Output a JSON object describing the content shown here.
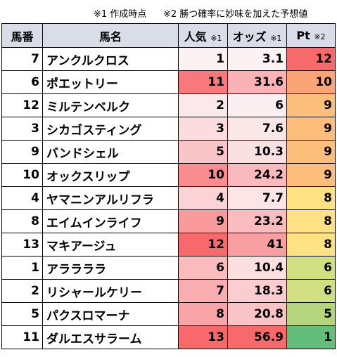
{
  "notes": {
    "note1": "※1 作成時点",
    "note2": "※2 勝つ確率に妙味を加えた予想値"
  },
  "headers": {
    "number": "馬番",
    "name": "馬名",
    "popularity": "人気",
    "popularity_mark": "※1",
    "odds": "オッズ",
    "odds_mark": "※1",
    "pt": "Pt",
    "pt_mark": "※2"
  },
  "rows": [
    {
      "number": "7",
      "name": "アンクルクロス",
      "popularity": "1",
      "odds": "3.1",
      "pt": "12",
      "pop_color": "#fcf1f3",
      "odds_color": "#fcf1f3",
      "pt_color": "#f8696b"
    },
    {
      "number": "6",
      "name": "ポエットリー",
      "popularity": "11",
      "odds": "31.6",
      "pt": "10",
      "pop_color": "#f8797c",
      "odds_color": "#fab2b5",
      "pt_color": "#fba476"
    },
    {
      "number": "12",
      "name": "ミルテンベルク",
      "popularity": "2",
      "odds": "6",
      "pt": "9",
      "pop_color": "#fbe8ea",
      "odds_color": "#fbeff1",
      "pt_color": "#fdbe7b"
    },
    {
      "number": "3",
      "name": "シカゴスティング",
      "popularity": "3",
      "odds": "7.6",
      "pt": "9",
      "pop_color": "#fbdcdf",
      "odds_color": "#fbe6e8",
      "pt_color": "#fdbe7b"
    },
    {
      "number": "9",
      "name": "バンドシェル",
      "popularity": "5",
      "odds": "10.3",
      "pt": "9",
      "pop_color": "#fac5c8",
      "odds_color": "#fbe0e2",
      "pt_color": "#fdbe7b"
    },
    {
      "number": "10",
      "name": "オックスリップ",
      "popularity": "10",
      "odds": "24.2",
      "pt": "9",
      "pop_color": "#f98c8f",
      "odds_color": "#fab9bc",
      "pt_color": "#fdbe7b"
    },
    {
      "number": "4",
      "name": "ヤマニンアルリフラ",
      "popularity": "4",
      "odds": "7.7",
      "pt": "8",
      "pop_color": "#fbd2d5",
      "odds_color": "#fbe5e7",
      "pt_color": "#fee183"
    },
    {
      "number": "8",
      "name": "エイムインライフ",
      "popularity": "9",
      "odds": "23.2",
      "pt": "8",
      "pop_color": "#f99a9d",
      "odds_color": "#fabcbf",
      "pt_color": "#fee183"
    },
    {
      "number": "13",
      "name": "マキアージュ",
      "popularity": "12",
      "odds": "41",
      "pt": "8",
      "pop_color": "#f8696b",
      "odds_color": "#f99fa2",
      "pt_color": "#fee183"
    },
    {
      "number": "1",
      "name": "アララララ",
      "popularity": "6",
      "odds": "10.4",
      "pt": "6",
      "pop_color": "#fabbbe",
      "odds_color": "#fbdfe1",
      "pt_color": "#d0df7f"
    },
    {
      "number": "2",
      "name": "リシャールケリー",
      "popularity": "7",
      "odds": "18.3",
      "pt": "6",
      "pop_color": "#faaeb1",
      "odds_color": "#fbcdd0",
      "pt_color": "#d0df7f"
    },
    {
      "number": "5",
      "name": "パクスロマーナ",
      "popularity": "8",
      "odds": "20.8",
      "pt": "5",
      "pop_color": "#f9a4a7",
      "odds_color": "#fac4c7",
      "pt_color": "#b5d57d"
    },
    {
      "number": "11",
      "name": "ダルエスサラーム",
      "popularity": "13",
      "odds": "56.9",
      "pt": "1",
      "pop_color": "#f8696b",
      "odds_color": "#f8696b",
      "pt_color": "#63be7b"
    }
  ]
}
